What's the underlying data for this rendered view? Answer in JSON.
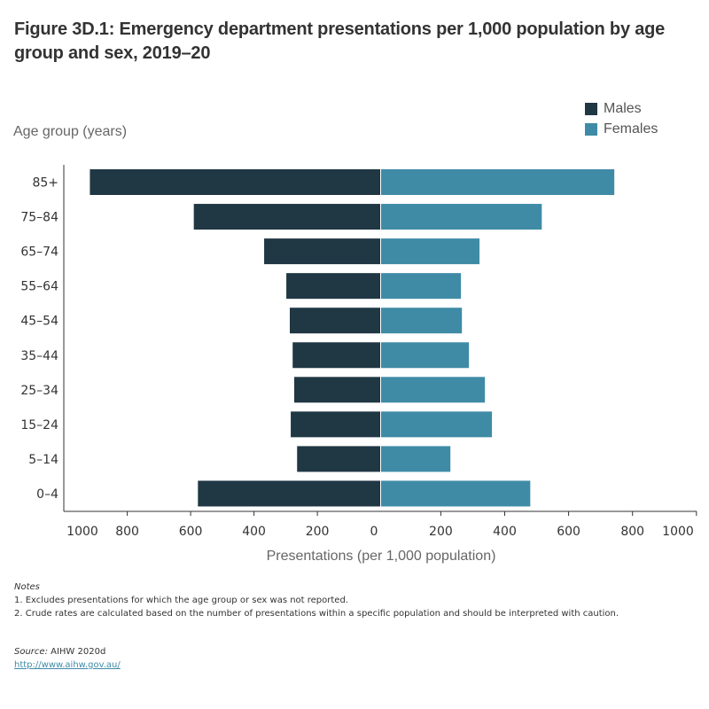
{
  "title": "Figure 3D.1: Emergency department presentations per 1,000 population by age group and sex, 2019–20",
  "colors": {
    "males": "#203744",
    "females": "#3f8ba6",
    "axis": "#333333"
  },
  "chart_data": {
    "type": "bar",
    "orientation": "horizontal-butterfly",
    "title": "Figure 3D.1: Emergency department presentations per 1,000 population by age group and sex, 2019–20",
    "ylabel": "Age group (years)",
    "xlabel": "Presentations (per 1,000 population)",
    "categories": [
      "85+",
      "75–84",
      "65–74",
      "55–64",
      "45–54",
      "35–44",
      "25–34",
      "15–24",
      "5–14",
      "0–4"
    ],
    "series": [
      {
        "name": "Males",
        "side": "left",
        "values": [
          918,
          590,
          368,
          298,
          287,
          278,
          273,
          284,
          264,
          577
        ]
      },
      {
        "name": "Females",
        "side": "right",
        "values": [
          743,
          516,
          321,
          263,
          266,
          288,
          338,
          360,
          230,
          480
        ]
      }
    ],
    "xlim_left": [
      1000,
      0
    ],
    "xlim_right": [
      0,
      1000
    ],
    "x_ticks_left": [
      "1000",
      "800",
      "600",
      "400",
      "200",
      "0"
    ],
    "x_ticks_right": [
      "200",
      "400",
      "600",
      "800",
      "1000"
    ],
    "x_tick_values_left": [
      1000,
      800,
      600,
      400,
      200,
      0
    ],
    "x_tick_values_right": [
      200,
      400,
      600,
      800,
      1000
    ],
    "legend": {
      "position": "top-right",
      "entries": [
        "Males",
        "Females"
      ]
    },
    "grid": false
  },
  "notes": {
    "heading": "Notes",
    "items": [
      "1. Excludes presentations for which the age group or sex was not reported.",
      "2. Crude rates are calculated based on the number of presentations within a specific population and should be interpreted with caution."
    ]
  },
  "source": {
    "label": "Source:",
    "text": " AIHW 2020d",
    "link": "http://www.aihw.gov.au/"
  }
}
